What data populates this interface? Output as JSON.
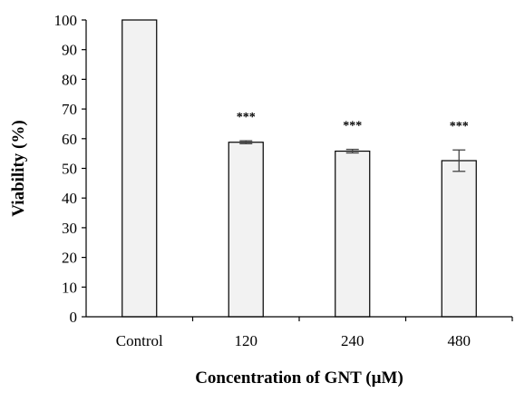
{
  "chart_data": {
    "type": "bar",
    "title": "",
    "xlabel": "Concentration of GNT (µM)",
    "ylabel": "Viability  (%)",
    "ylim": [
      0,
      100
    ],
    "yticks": [
      0,
      10,
      20,
      30,
      40,
      50,
      60,
      70,
      80,
      90,
      100
    ],
    "categories": [
      "Control",
      "120",
      "240",
      "480"
    ],
    "values": [
      100,
      58.8,
      55.8,
      52.6
    ],
    "errors": [
      0,
      0.5,
      0.6,
      3.6
    ],
    "significance": [
      "",
      "***",
      "***",
      "***"
    ],
    "grid": false,
    "bar_fill": "#f2f2f2",
    "bar_stroke": "#000000"
  }
}
